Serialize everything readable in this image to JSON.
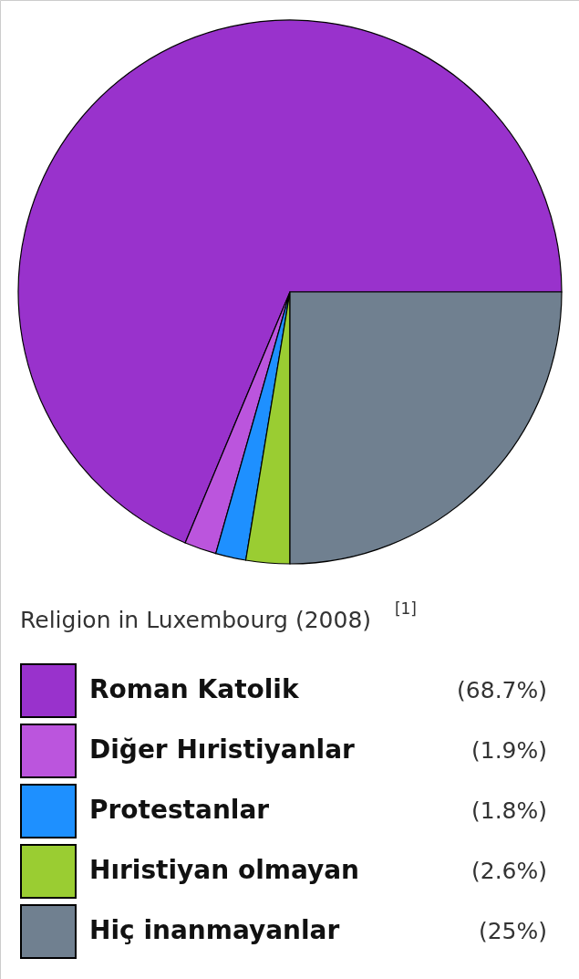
{
  "chart_data": {
    "type": "pie",
    "title": "Religion in Luxembourg (2008)$^{[1]}$",
    "categories": [
      "Roman Katolik",
      "Diğer Hıristiyanlar",
      "Protestanlar",
      "Hıristiyan olmayan",
      "Hiç inanmayanlar"
    ],
    "values": [
      68.7,
      1.9,
      1.8,
      2.6,
      25
    ],
    "colors": [
      "#9932cc",
      "#bb55dd",
      "#1e90ff",
      "#9acd32",
      "#708090"
    ],
    "value_labels": [
      "(68.7%)",
      "(1.9%)",
      "(1.8%)",
      "(2.6%)",
      "(25%)"
    ],
    "legend": "bottom"
  }
}
